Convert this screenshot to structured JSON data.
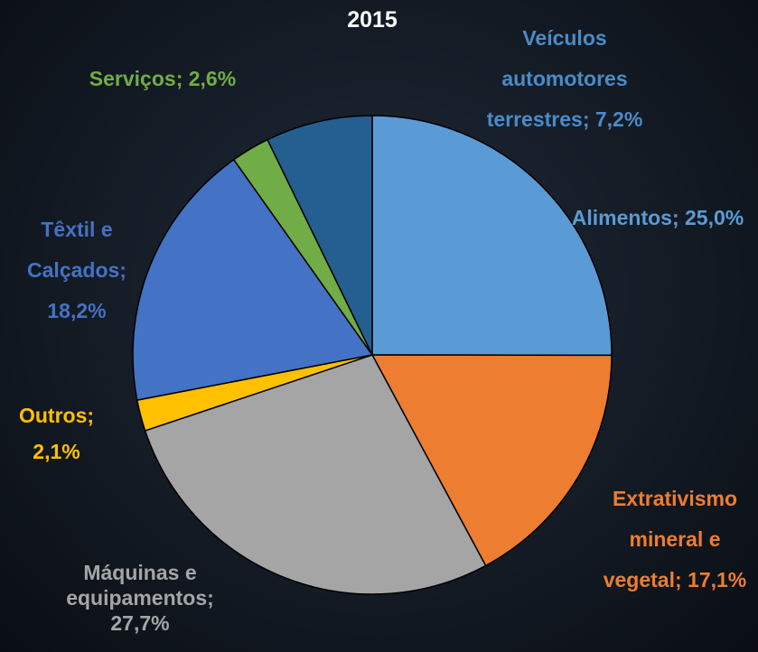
{
  "chart_data": {
    "type": "pie",
    "title": "2015",
    "categories": [
      "Alimentos;",
      "Extrativismo mineral e vegetal;",
      "Máquinas e equipamentos;",
      "Outros;",
      "Têxtil e Calçados;",
      "Serviços;",
      "Veículos automotores terrestres;"
    ],
    "values": [
      25.0,
      17.1,
      27.7,
      2.1,
      18.2,
      2.6,
      7.2
    ],
    "value_labels": [
      "25,0%",
      "17,1%",
      "27,7%",
      "2,1%",
      "18,2%",
      "2,6%",
      "7,2%"
    ],
    "colors": [
      "#5b9bd5",
      "#ed7d31",
      "#a5a5a5",
      "#ffc000",
      "#4472c4",
      "#70ad47",
      "#255e91"
    ],
    "label_colors": [
      "#5b9bd5",
      "#ed7d31",
      "#a5a5a5",
      "#ffc000",
      "#4472c4",
      "#70ad47",
      "#4a8bc8"
    ]
  }
}
